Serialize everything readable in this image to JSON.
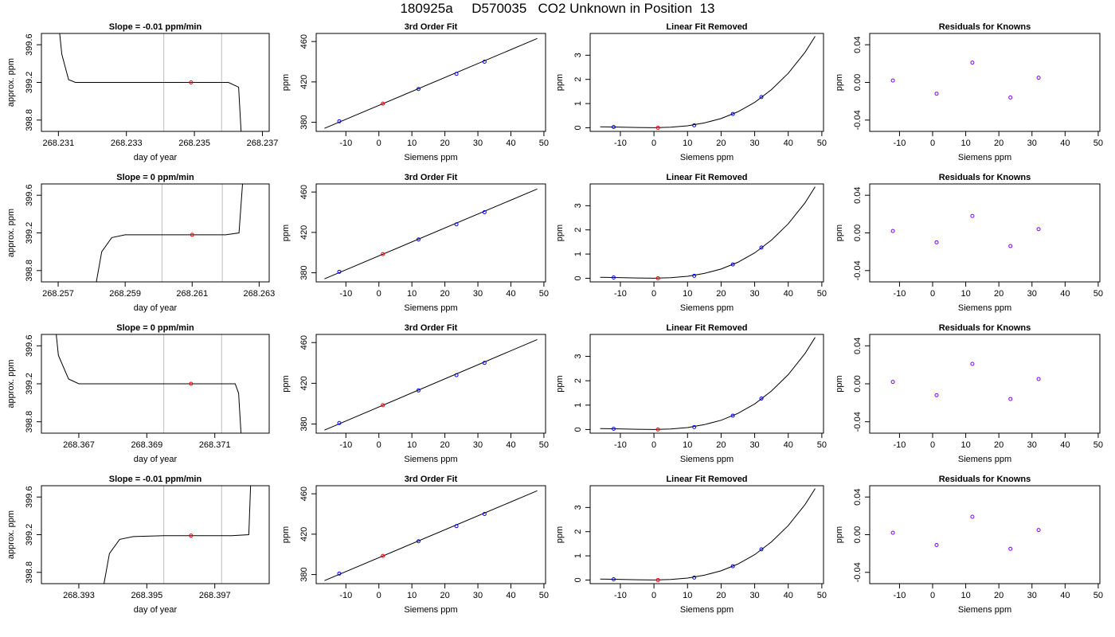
{
  "title": "180925a     D570035   CO2 Unknown in Position  13",
  "chart_data": [
    {
      "type": "line",
      "title": "Slope =  -0.01  ppm/min",
      "xlabel": "day of year",
      "ylabel": "approx. ppm",
      "xticks": [
        "268.231",
        "268.233",
        "268.235",
        "268.237"
      ],
      "xlim": [
        268.2305,
        268.2372
      ],
      "yticks": [
        "398.8",
        "399.2",
        "399.6"
      ],
      "ylim": [
        398.68,
        399.72
      ],
      "vlines": [
        268.2341,
        268.2358
      ],
      "sample_point": {
        "x": 268.2349,
        "y": 399.2
      },
      "trace": [
        [
          268.2309,
          400.2
        ],
        [
          268.2311,
          399.5
        ],
        [
          268.2313,
          399.23
        ],
        [
          268.2315,
          399.2
        ],
        [
          268.232,
          399.2
        ],
        [
          268.233,
          399.2
        ],
        [
          268.234,
          399.2
        ],
        [
          268.235,
          399.2
        ],
        [
          268.236,
          399.2
        ],
        [
          268.2363,
          399.15
        ],
        [
          268.2364,
          398.5
        ]
      ]
    },
    {
      "type": "line",
      "title": "3rd Order Fit",
      "xlabel": "Siemens ppm",
      "ylabel": "ppm",
      "xticks": [
        "-10",
        "0",
        "10",
        "20",
        "30",
        "40",
        "50"
      ],
      "xlim": [
        -19,
        50.5
      ],
      "yticks": [
        "380",
        "420",
        "460"
      ],
      "ylim": [
        371,
        468
      ],
      "fit_line": [
        [
          -16.5,
          374
        ],
        [
          48,
          463
        ]
      ],
      "knowns": [
        [
          -12,
          381
        ],
        [
          12,
          413
        ],
        [
          23.5,
          428
        ],
        [
          32,
          440
        ]
      ],
      "sample": [
        [
          1.2,
          398.5
        ]
      ]
    },
    {
      "type": "line",
      "title": "Linear Fit Removed",
      "xlabel": "Siemens ppm",
      "ylabel": "ppm",
      "xticks": [
        "-10",
        "0",
        "10",
        "20",
        "30",
        "40",
        "50"
      ],
      "xlim": [
        -19,
        50.5
      ],
      "yticks": [
        "0",
        "1",
        "2",
        "3"
      ],
      "ylim": [
        -0.15,
        3.9
      ],
      "curve": [
        [
          -16,
          0.04
        ],
        [
          -12,
          0.03
        ],
        [
          -5,
          0.01
        ],
        [
          0,
          0.0
        ],
        [
          5,
          0.02
        ],
        [
          10,
          0.08
        ],
        [
          15,
          0.2
        ],
        [
          20,
          0.38
        ],
        [
          25,
          0.66
        ],
        [
          30,
          1.05
        ],
        [
          35,
          1.58
        ],
        [
          40,
          2.25
        ],
        [
          45,
          3.12
        ],
        [
          48,
          3.78
        ]
      ],
      "knowns": [
        [
          -12,
          0.03
        ],
        [
          12,
          0.1
        ],
        [
          23.5,
          0.57
        ],
        [
          32,
          1.27
        ]
      ],
      "sample": [
        [
          1.2,
          0.0
        ]
      ]
    },
    {
      "type": "scatter",
      "title": "Residuals for Knowns",
      "xlabel": "Siemens ppm",
      "ylabel": "ppm",
      "xticks": [
        "-10",
        "0",
        "10",
        "20",
        "30",
        "40",
        "50"
      ],
      "xlim": [
        -19,
        50.5
      ],
      "yticks": [
        "-0.04",
        "0.00",
        "0.04"
      ],
      "ylim": [
        -0.052,
        0.052
      ],
      "points": [
        [
          -12,
          0.002
        ],
        [
          1.2,
          -0.012
        ],
        [
          12,
          0.021
        ],
        [
          23.5,
          -0.016
        ],
        [
          32,
          0.005
        ]
      ]
    },
    {
      "type": "line",
      "title": "Slope =  0  ppm/min",
      "xlabel": "day of year",
      "ylabel": "approx. ppm",
      "xticks": [
        "268.257",
        "268.259",
        "268.261",
        "268.263"
      ],
      "xlim": [
        268.2565,
        268.2633
      ],
      "yticks": [
        "398.8",
        "399.2",
        "399.6"
      ],
      "ylim": [
        398.68,
        399.72
      ],
      "vlines": [
        268.2601,
        268.2619
      ],
      "sample_point": {
        "x": 268.261,
        "y": 399.18
      },
      "trace": [
        [
          268.258,
          398.4
        ],
        [
          268.2583,
          399.0
        ],
        [
          268.2586,
          399.15
        ],
        [
          268.259,
          399.18
        ],
        [
          268.26,
          399.18
        ],
        [
          268.261,
          399.18
        ],
        [
          268.262,
          399.18
        ],
        [
          268.2624,
          399.2
        ],
        [
          268.2626,
          400.2
        ]
      ]
    },
    {
      "type": "line",
      "title": "3rd Order Fit",
      "xlabel": "Siemens ppm",
      "ylabel": "ppm",
      "xticks": [
        "-10",
        "0",
        "10",
        "20",
        "30",
        "40",
        "50"
      ],
      "xlim": [
        -19,
        50.5
      ],
      "yticks": [
        "380",
        "420",
        "460"
      ],
      "ylim": [
        371,
        468
      ],
      "fit_line": [
        [
          -16.5,
          374
        ],
        [
          48,
          463
        ]
      ],
      "knowns": [
        [
          -12,
          381
        ],
        [
          12,
          413
        ],
        [
          23.5,
          428
        ],
        [
          32,
          440
        ]
      ],
      "sample": [
        [
          1.2,
          398.5
        ]
      ]
    },
    {
      "type": "line",
      "title": "Linear Fit Removed",
      "xlabel": "Siemens ppm",
      "ylabel": "ppm",
      "xticks": [
        "-10",
        "0",
        "10",
        "20",
        "30",
        "40",
        "50"
      ],
      "xlim": [
        -19,
        50.5
      ],
      "yticks": [
        "0",
        "1",
        "2",
        "3"
      ],
      "ylim": [
        -0.15,
        3.9
      ],
      "curve": [
        [
          -16,
          0.04
        ],
        [
          -12,
          0.03
        ],
        [
          -5,
          0.01
        ],
        [
          0,
          0.0
        ],
        [
          5,
          0.02
        ],
        [
          10,
          0.08
        ],
        [
          15,
          0.2
        ],
        [
          20,
          0.38
        ],
        [
          25,
          0.66
        ],
        [
          30,
          1.05
        ],
        [
          35,
          1.58
        ],
        [
          40,
          2.25
        ],
        [
          45,
          3.12
        ],
        [
          48,
          3.78
        ]
      ],
      "knowns": [
        [
          -12,
          0.03
        ],
        [
          12,
          0.1
        ],
        [
          23.5,
          0.57
        ],
        [
          32,
          1.27
        ]
      ],
      "sample": [
        [
          1.2,
          0.0
        ]
      ]
    },
    {
      "type": "scatter",
      "title": "Residuals for Knowns",
      "xlabel": "Siemens ppm",
      "ylabel": "ppm",
      "xticks": [
        "-10",
        "0",
        "10",
        "20",
        "30",
        "40",
        "50"
      ],
      "xlim": [
        -19,
        50.5
      ],
      "yticks": [
        "-0.04",
        "0.00",
        "0.04"
      ],
      "ylim": [
        -0.052,
        0.052
      ],
      "points": [
        [
          -12,
          0.002
        ],
        [
          1.2,
          -0.01
        ],
        [
          12,
          0.018
        ],
        [
          23.5,
          -0.014
        ],
        [
          32,
          0.004
        ]
      ]
    },
    {
      "type": "line",
      "title": "Slope =  0  ppm/min",
      "xlabel": "day of year",
      "ylabel": "approx. ppm",
      "xticks": [
        "268.367",
        "268.369",
        "268.371"
      ],
      "xlim": [
        268.3659,
        268.3726
      ],
      "yticks": [
        "398.8",
        "399.2",
        "399.6"
      ],
      "ylim": [
        398.68,
        399.72
      ],
      "vlines": [
        268.3695,
        268.3712
      ],
      "sample_point": {
        "x": 268.3703,
        "y": 399.2
      },
      "trace": [
        [
          268.3662,
          400.2
        ],
        [
          268.3664,
          399.5
        ],
        [
          268.3667,
          399.25
        ],
        [
          268.367,
          399.2
        ],
        [
          268.368,
          399.2
        ],
        [
          268.369,
          399.2
        ],
        [
          268.37,
          399.2
        ],
        [
          268.371,
          399.2
        ],
        [
          268.3716,
          399.2
        ],
        [
          268.3717,
          399.1
        ],
        [
          268.3718,
          398.5
        ]
      ]
    },
    {
      "type": "line",
      "title": "3rd Order Fit",
      "xlabel": "Siemens ppm",
      "ylabel": "ppm",
      "xticks": [
        "-10",
        "0",
        "10",
        "20",
        "30",
        "40",
        "50"
      ],
      "xlim": [
        -19,
        50.5
      ],
      "yticks": [
        "380",
        "420",
        "460"
      ],
      "ylim": [
        371,
        468
      ],
      "fit_line": [
        [
          -16.5,
          374
        ],
        [
          48,
          463
        ]
      ],
      "knowns": [
        [
          -12,
          381
        ],
        [
          12,
          413
        ],
        [
          23.5,
          428
        ],
        [
          32,
          440
        ]
      ],
      "sample": [
        [
          1.2,
          398.5
        ]
      ]
    },
    {
      "type": "line",
      "title": "Linear Fit Removed",
      "xlabel": "Siemens ppm",
      "ylabel": "ppm",
      "xticks": [
        "-10",
        "0",
        "10",
        "20",
        "30",
        "40",
        "50"
      ],
      "xlim": [
        -19,
        50.5
      ],
      "yticks": [
        "0",
        "1",
        "2",
        "3"
      ],
      "ylim": [
        -0.15,
        3.9
      ],
      "curve": [
        [
          -16,
          0.04
        ],
        [
          -12,
          0.03
        ],
        [
          -5,
          0.01
        ],
        [
          0,
          0.0
        ],
        [
          5,
          0.02
        ],
        [
          10,
          0.08
        ],
        [
          15,
          0.2
        ],
        [
          20,
          0.38
        ],
        [
          25,
          0.66
        ],
        [
          30,
          1.05
        ],
        [
          35,
          1.58
        ],
        [
          40,
          2.25
        ],
        [
          45,
          3.12
        ],
        [
          48,
          3.78
        ]
      ],
      "knowns": [
        [
          -12,
          0.03
        ],
        [
          12,
          0.1
        ],
        [
          23.5,
          0.57
        ],
        [
          32,
          1.27
        ]
      ],
      "sample": [
        [
          1.2,
          0.0
        ]
      ]
    },
    {
      "type": "scatter",
      "title": "Residuals for Knowns",
      "xlabel": "Siemens ppm",
      "ylabel": "ppm",
      "xticks": [
        "-10",
        "0",
        "10",
        "20",
        "30",
        "40",
        "50"
      ],
      "xlim": [
        -19,
        50.5
      ],
      "yticks": [
        "-0.04",
        "0.00",
        "0.04"
      ],
      "ylim": [
        -0.052,
        0.052
      ],
      "points": [
        [
          -12,
          0.002
        ],
        [
          1.2,
          -0.012
        ],
        [
          12,
          0.021
        ],
        [
          23.5,
          -0.016
        ],
        [
          32,
          0.005
        ]
      ]
    },
    {
      "type": "line",
      "title": "Slope =  -0.01  ppm/min",
      "xlabel": "day of year",
      "ylabel": "approx. ppm",
      "xticks": [
        "268.393",
        "268.395",
        "268.397"
      ],
      "xlim": [
        268.3919,
        268.3986
      ],
      "yticks": [
        "398.8",
        "399.2",
        "399.6"
      ],
      "ylim": [
        398.68,
        399.72
      ],
      "vlines": [
        268.3955,
        268.3972
      ],
      "sample_point": {
        "x": 268.3963,
        "y": 399.19
      },
      "trace": [
        [
          268.3936,
          398.4
        ],
        [
          268.3939,
          399.0
        ],
        [
          268.3942,
          399.15
        ],
        [
          268.3946,
          399.18
        ],
        [
          268.3955,
          399.19
        ],
        [
          268.3965,
          399.19
        ],
        [
          268.3975,
          399.19
        ],
        [
          268.398,
          399.2
        ],
        [
          268.3981,
          400.2
        ]
      ]
    },
    {
      "type": "line",
      "title": "3rd Order Fit",
      "xlabel": "Siemens ppm",
      "ylabel": "ppm",
      "xticks": [
        "-10",
        "0",
        "10",
        "20",
        "30",
        "40",
        "50"
      ],
      "xlim": [
        -19,
        50.5
      ],
      "yticks": [
        "380",
        "420",
        "460"
      ],
      "ylim": [
        371,
        468
      ],
      "fit_line": [
        [
          -16.5,
          374
        ],
        [
          48,
          463
        ]
      ],
      "knowns": [
        [
          -12,
          381
        ],
        [
          12,
          413
        ],
        [
          23.5,
          428
        ],
        [
          32,
          440
        ]
      ],
      "sample": [
        [
          1.2,
          398.5
        ]
      ]
    },
    {
      "type": "line",
      "title": "Linear Fit Removed",
      "xlabel": "Siemens ppm",
      "ylabel": "ppm",
      "xticks": [
        "-10",
        "0",
        "10",
        "20",
        "30",
        "40",
        "50"
      ],
      "xlim": [
        -19,
        50.5
      ],
      "yticks": [
        "0",
        "1",
        "2",
        "3"
      ],
      "ylim": [
        -0.15,
        3.9
      ],
      "curve": [
        [
          -16,
          0.04
        ],
        [
          -12,
          0.03
        ],
        [
          -5,
          0.01
        ],
        [
          0,
          0.0
        ],
        [
          5,
          0.02
        ],
        [
          10,
          0.08
        ],
        [
          15,
          0.2
        ],
        [
          20,
          0.38
        ],
        [
          25,
          0.66
        ],
        [
          30,
          1.05
        ],
        [
          35,
          1.58
        ],
        [
          40,
          2.25
        ],
        [
          45,
          3.12
        ],
        [
          48,
          3.78
        ]
      ],
      "knowns": [
        [
          -12,
          0.03
        ],
        [
          12,
          0.1
        ],
        [
          23.5,
          0.57
        ],
        [
          32,
          1.27
        ]
      ],
      "sample": [
        [
          1.2,
          0.0
        ]
      ]
    },
    {
      "type": "scatter",
      "title": "Residuals for Knowns",
      "xlabel": "Siemens ppm",
      "ylabel": "ppm",
      "xticks": [
        "-10",
        "0",
        "10",
        "20",
        "30",
        "40",
        "50"
      ],
      "xlim": [
        -19,
        50.5
      ],
      "yticks": [
        "-0.04",
        "0.00",
        "0.04"
      ],
      "ylim": [
        -0.052,
        0.052
      ],
      "points": [
        [
          -12,
          0.002
        ],
        [
          1.2,
          -0.011
        ],
        [
          12,
          0.019
        ],
        [
          23.5,
          -0.015
        ],
        [
          32,
          0.005
        ]
      ]
    }
  ]
}
